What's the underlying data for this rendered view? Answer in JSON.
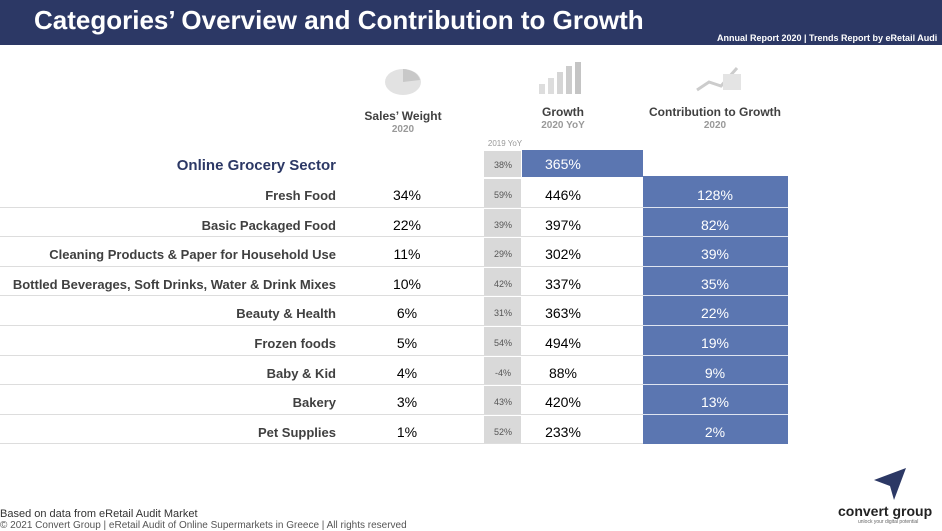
{
  "header": {
    "title": "Categories’ Overview and Contribution to Growth",
    "subtitle": "Annual Report 2020 | Trends Report by eRetail Audi"
  },
  "columns": {
    "sales_weight": {
      "label": "Sales’ Weight",
      "year": "2020"
    },
    "growth": {
      "label": "Growth",
      "year": "2020 YoY"
    },
    "contribution": {
      "label": "Contribution to Growth",
      "year": "2020"
    },
    "previous": {
      "label": "2019 YoY"
    }
  },
  "total": {
    "label": "Online Grocery Sector",
    "previous": "38%",
    "growth": "365%"
  },
  "rows": [
    [
      "Fresh Food",
      "34%",
      "59%",
      "446%",
      "128%"
    ],
    [
      "Basic Packaged Food",
      "22%",
      "39%",
      "397%",
      "82%"
    ],
    [
      "Cleaning Products & Paper for Household Use",
      "11%",
      "29%",
      "302%",
      "39%"
    ],
    [
      "Bottled Beverages, Soft Drinks, Water & Drink Mixes",
      "10%",
      "42%",
      "337%",
      "35%"
    ],
    [
      "Beauty & Health",
      "6%",
      "31%",
      "363%",
      "22%"
    ],
    [
      "Frozen foods",
      "5%",
      "54%",
      "494%",
      "19%"
    ],
    [
      "Baby & Kid",
      "4%",
      "-4%",
      "88%",
      "9%"
    ],
    [
      "Bakery",
      "3%",
      "43%",
      "420%",
      "13%"
    ],
    [
      "Pet Supplies",
      "1%",
      "52%",
      "233%",
      "2%"
    ]
  ],
  "footer": {
    "source": "Based on data from eRetail Audit Market",
    "copyright": "© 2021 Convert Group | eRetail Audit of Online Supermarkets in Greece | All rights reserved"
  },
  "logo": {
    "name": "convert group",
    "tagline": "unlock your digital potential"
  }
}
